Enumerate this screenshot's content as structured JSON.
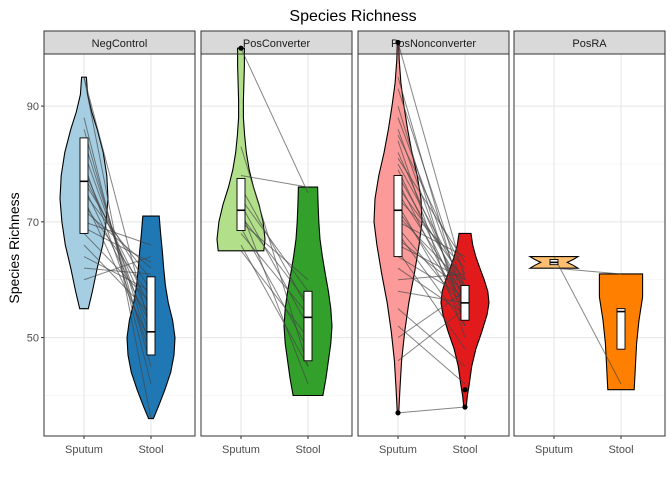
{
  "chart_data": {
    "type": "violin",
    "title": "Species Richness",
    "ylabel": "Species Richness",
    "xlabel": "",
    "ylim": [
      33,
      99
    ],
    "yticks": [
      50,
      70,
      90
    ],
    "grid": true,
    "legend": "none",
    "categories": [
      "Sputum",
      "Stool"
    ],
    "facets": [
      {
        "name": "NegControl",
        "groups": [
          {
            "category": "Sputum",
            "color": "#a6cee3",
            "range": [
              55,
              95
            ],
            "box": {
              "q1": 68,
              "median": 77,
              "q3": 84.5
            },
            "density": [
              [
                55,
                0.18
              ],
              [
                58,
                0.35
              ],
              [
                62,
                0.55
              ],
              [
                66,
                0.78
              ],
              [
                70,
                0.92
              ],
              [
                74,
                1.0
              ],
              [
                78,
                0.95
              ],
              [
                82,
                0.8
              ],
              [
                86,
                0.55
              ],
              [
                89,
                0.32
              ],
              [
                92,
                0.15
              ],
              [
                95,
                0.1
              ]
            ]
          },
          {
            "category": "Stool",
            "color": "#1f78b4",
            "range": [
              36,
              71
            ],
            "box": {
              "q1": 47,
              "median": 51,
              "q3": 60.5
            },
            "density": [
              [
                36,
                0.1
              ],
              [
                38,
                0.3
              ],
              [
                41,
                0.58
              ],
              [
                44,
                0.82
              ],
              [
                47,
                0.96
              ],
              [
                50,
                1.0
              ],
              [
                53,
                0.9
              ],
              [
                56,
                0.72
              ],
              [
                59,
                0.6
              ],
              [
                62,
                0.53
              ],
              [
                65,
                0.47
              ],
              [
                68,
                0.4
              ],
              [
                71,
                0.34
              ]
            ]
          }
        ],
        "pairs": [
          [
            95,
            51
          ],
          [
            95,
            36
          ],
          [
            88,
            42
          ],
          [
            86,
            45
          ],
          [
            84,
            48
          ],
          [
            82,
            50
          ],
          [
            80,
            47
          ],
          [
            79,
            53
          ],
          [
            78,
            55
          ],
          [
            77,
            58
          ],
          [
            76,
            52
          ],
          [
            75,
            60
          ],
          [
            74,
            49
          ],
          [
            73,
            57
          ],
          [
            72,
            62
          ],
          [
            70,
            66
          ],
          [
            69,
            63
          ],
          [
            68,
            56
          ],
          [
            66,
            54
          ],
          [
            64,
            58
          ],
          [
            62,
            61
          ],
          [
            60,
            64
          ]
        ],
        "outliers": []
      },
      {
        "name": "PosConverter",
        "groups": [
          {
            "category": "Sputum",
            "color": "#b2df8a",
            "range": [
              65,
              100
            ],
            "box": {
              "q1": 68.5,
              "median": 72,
              "q3": 77.5
            },
            "density": [
              [
                65,
                0.95
              ],
              [
                67,
                1.0
              ],
              [
                70,
                0.92
              ],
              [
                73,
                0.75
              ],
              [
                76,
                0.52
              ],
              [
                79,
                0.34
              ],
              [
                82,
                0.22
              ],
              [
                85,
                0.15
              ],
              [
                88,
                0.1
              ],
              [
                91,
                0.1
              ],
              [
                94,
                0.12
              ],
              [
                97,
                0.14
              ],
              [
                100,
                0.14
              ]
            ]
          },
          {
            "category": "Stool",
            "color": "#33a02c",
            "range": [
              40,
              76
            ],
            "box": {
              "q1": 46,
              "median": 53.5,
              "q3": 58
            },
            "density": [
              [
                40,
                0.62
              ],
              [
                43,
                0.75
              ],
              [
                46,
                0.85
              ],
              [
                49,
                0.95
              ],
              [
                52,
                1.0
              ],
              [
                55,
                0.95
              ],
              [
                58,
                0.85
              ],
              [
                61,
                0.72
              ],
              [
                64,
                0.6
              ],
              [
                67,
                0.5
              ],
              [
                70,
                0.45
              ],
              [
                73,
                0.42
              ],
              [
                76,
                0.4
              ]
            ]
          }
        ],
        "pairs": [
          [
            100,
            75
          ],
          [
            83,
            45
          ],
          [
            78,
            76
          ],
          [
            76,
            55
          ],
          [
            74,
            58
          ],
          [
            73,
            52
          ],
          [
            72,
            42
          ],
          [
            71,
            56
          ],
          [
            70,
            60
          ],
          [
            69,
            48
          ],
          [
            68,
            54
          ],
          [
            66,
            45
          ],
          [
            65,
            50
          ]
        ],
        "outliers": [
          {
            "category": "Sputum",
            "value": 100
          }
        ]
      },
      {
        "name": "PosNonconverter",
        "groups": [
          {
            "category": "Sputum",
            "color": "#fb9a99",
            "range": [
              37,
              101
            ],
            "box": {
              "q1": 64,
              "median": 72,
              "q3": 78
            },
            "density": [
              [
                37,
                0.03
              ],
              [
                41,
                0.08
              ],
              [
                46,
                0.15
              ],
              [
                51,
                0.28
              ],
              [
                56,
                0.45
              ],
              [
                61,
                0.68
              ],
              [
                66,
                0.88
              ],
              [
                70,
                1.0
              ],
              [
                74,
                0.96
              ],
              [
                78,
                0.8
              ],
              [
                82,
                0.58
              ],
              [
                86,
                0.4
              ],
              [
                90,
                0.25
              ],
              [
                94,
                0.12
              ],
              [
                98,
                0.05
              ],
              [
                101,
                0.03
              ]
            ]
          },
          {
            "category": "Stool",
            "color": "#e31a1c",
            "range": [
              38,
              68
            ],
            "box": {
              "q1": 53,
              "median": 56,
              "q3": 59
            },
            "density": [
              [
                38,
                0.05
              ],
              [
                40,
                0.1
              ],
              [
                42,
                0.18
              ],
              [
                45,
                0.28
              ],
              [
                48,
                0.45
              ],
              [
                51,
                0.7
              ],
              [
                54,
                0.92
              ],
              [
                56,
                1.0
              ],
              [
                58,
                0.95
              ],
              [
                60,
                0.8
              ],
              [
                62,
                0.62
              ],
              [
                64,
                0.45
              ],
              [
                66,
                0.32
              ],
              [
                68,
                0.25
              ]
            ]
          }
        ],
        "pairs": [
          [
            101,
            60
          ],
          [
            95,
            55
          ],
          [
            93,
            58
          ],
          [
            90,
            52
          ],
          [
            88,
            57
          ],
          [
            86,
            54
          ],
          [
            85,
            61
          ],
          [
            84,
            50
          ],
          [
            82,
            56
          ],
          [
            81,
            63
          ],
          [
            80,
            59
          ],
          [
            79,
            55
          ],
          [
            78,
            58
          ],
          [
            77,
            54
          ],
          [
            76,
            60
          ],
          [
            75,
            57
          ],
          [
            74,
            62
          ],
          [
            73,
            53
          ],
          [
            72,
            56
          ],
          [
            71,
            59
          ],
          [
            70,
            64
          ],
          [
            69,
            55
          ],
          [
            68,
            52
          ],
          [
            67,
            58
          ],
          [
            66,
            60
          ],
          [
            65,
            48
          ],
          [
            64,
            57
          ],
          [
            62,
            54
          ],
          [
            60,
            61
          ],
          [
            58,
            56
          ],
          [
            55,
            45
          ],
          [
            52,
            42
          ],
          [
            50,
            58
          ],
          [
            46,
            55
          ],
          [
            37,
            38
          ]
        ],
        "outliers": [
          {
            "category": "Sputum",
            "value": 101
          },
          {
            "category": "Sputum",
            "value": 37
          },
          {
            "category": "Stool",
            "value": 38
          },
          {
            "category": "Stool",
            "value": 41
          }
        ]
      },
      {
        "name": "PosRA",
        "groups": [
          {
            "category": "Sputum",
            "color": "#fdbf6f",
            "range": [
              62,
              64
            ],
            "box": {
              "q1": 62.6,
              "median": 63,
              "q3": 63.5
            },
            "density": [
              [
                62,
                1.0
              ],
              [
                62.5,
                0.8
              ],
              [
                63,
                0.55
              ],
              [
                63.5,
                0.8
              ],
              [
                64,
                1.0
              ]
            ]
          },
          {
            "category": "Stool",
            "color": "#ff7f00",
            "range": [
              41,
              61
            ],
            "box": {
              "q1": 48,
              "median": 54.5,
              "q3": 55
            },
            "density": [
              [
                41,
                0.55
              ],
              [
                45,
                0.6
              ],
              [
                49,
                0.65
              ],
              [
                53,
                0.75
              ],
              [
                57,
                0.9
              ],
              [
                61,
                0.9
              ]
            ]
          }
        ],
        "pairs": [
          [
            64,
            42
          ],
          [
            62,
            61
          ]
        ],
        "outliers": []
      }
    ]
  }
}
